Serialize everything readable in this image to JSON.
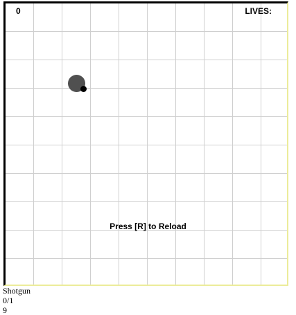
{
  "hud": {
    "score": "0",
    "lives_label": "LIVES:"
  },
  "messages": {
    "reload": "Press [R] to Reload"
  },
  "player": {
    "body_color": "#505050",
    "gun_color": "#000000"
  },
  "weapon": {
    "name": "Shotgun",
    "ammo": "0/1",
    "extra": "9"
  },
  "colors": {
    "grid_line": "#cfcfcf",
    "border_dark": "#000000",
    "border_light": "#ecec9a",
    "background": "#ffffff"
  }
}
